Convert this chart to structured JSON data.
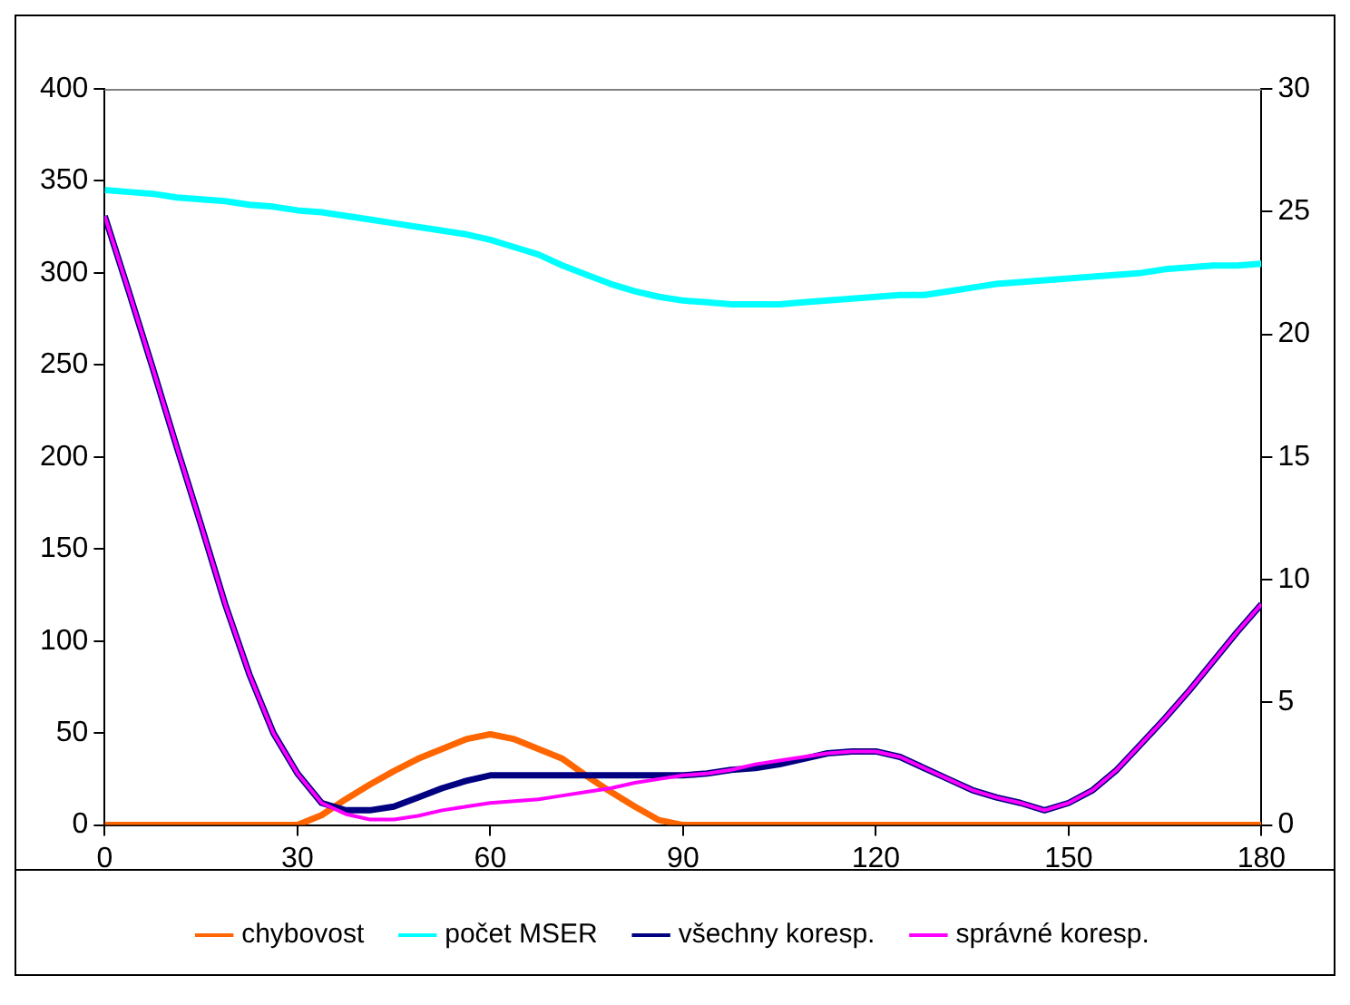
{
  "chart_data": {
    "type": "line",
    "x": [
      0,
      3.75,
      7.5,
      11.25,
      15,
      18.75,
      22.5,
      26.25,
      30,
      33.75,
      37.5,
      41.25,
      45,
      48.75,
      52.5,
      56.25,
      60,
      63.75,
      67.5,
      71.25,
      75,
      78.75,
      82.5,
      86.25,
      90,
      93.75,
      97.5,
      101.25,
      105,
      108.75,
      112.5,
      116.25,
      120,
      123.75,
      127.5,
      131.25,
      135,
      138.75,
      142.5,
      146.25,
      150,
      153.75,
      157.5,
      161.25,
      165,
      168.75,
      172.5,
      176.25,
      180
    ],
    "series": [
      {
        "name": "chybovost",
        "color": "#ff6600",
        "axis": "y2",
        "values": [
          0,
          0,
          0,
          0,
          0,
          0,
          0,
          0,
          0,
          0.4,
          1.05,
          1.65,
          2.2,
          2.7,
          3.1,
          3.5,
          3.7,
          3.5,
          3.1,
          2.7,
          2.0,
          1.35,
          0.75,
          0.2,
          0,
          0,
          0,
          0,
          0,
          0,
          0,
          0,
          0,
          0,
          0,
          0,
          0,
          0,
          0,
          0,
          0,
          0,
          0,
          0,
          0,
          0,
          0,
          0,
          0
        ]
      },
      {
        "name": "počet MSER",
        "color": "#00ffff",
        "values": [
          345,
          344,
          343,
          341,
          340,
          339,
          337,
          336,
          334,
          333,
          331,
          329,
          327,
          325,
          323,
          321,
          318,
          314,
          310,
          304,
          299,
          294,
          290,
          287,
          285,
          284,
          283,
          283,
          283,
          284,
          285,
          286,
          287,
          288,
          288,
          290,
          292,
          294,
          295,
          296,
          297,
          298,
          299,
          300,
          302,
          303,
          304,
          304,
          305
        ]
      },
      {
        "name": "všechny koresp.",
        "color": "#000080",
        "values": [
          331,
          290,
          248,
          205,
          163,
          120,
          82,
          50,
          28,
          12,
          8,
          8,
          10,
          15,
          20,
          24,
          27,
          27,
          27,
          27,
          27,
          27,
          27,
          27,
          27,
          28,
          30,
          31,
          33,
          36,
          39,
          40,
          40,
          37,
          31,
          25,
          19,
          15,
          12,
          8,
          12,
          19,
          30,
          44,
          58,
          73,
          89,
          105,
          120
        ]
      },
      {
        "name": "správné koresp.",
        "color": "#ff00ff",
        "values": [
          331,
          290,
          248,
          205,
          163,
          120,
          82,
          50,
          28,
          12,
          6,
          3,
          3,
          5,
          8,
          10,
          12,
          13,
          14,
          16,
          18,
          20,
          23,
          25,
          27,
          28,
          30,
          33,
          35,
          37,
          39,
          40,
          40,
          37,
          31,
          25,
          19,
          15,
          12,
          8,
          12,
          19,
          30,
          44,
          58,
          73,
          89,
          105,
          120
        ]
      }
    ],
    "xlim": [
      0,
      180
    ],
    "xticks": [
      0,
      30,
      60,
      90,
      120,
      150,
      180
    ],
    "ylim": [
      0,
      400
    ],
    "yticks": [
      0,
      50,
      100,
      150,
      200,
      250,
      300,
      350,
      400
    ],
    "y2lim": [
      0,
      30
    ],
    "y2ticks": [
      0,
      5,
      10,
      15,
      20,
      25,
      30
    ],
    "grid": false,
    "legend": "bottom",
    "marker": "none",
    "line_style": "solid"
  }
}
